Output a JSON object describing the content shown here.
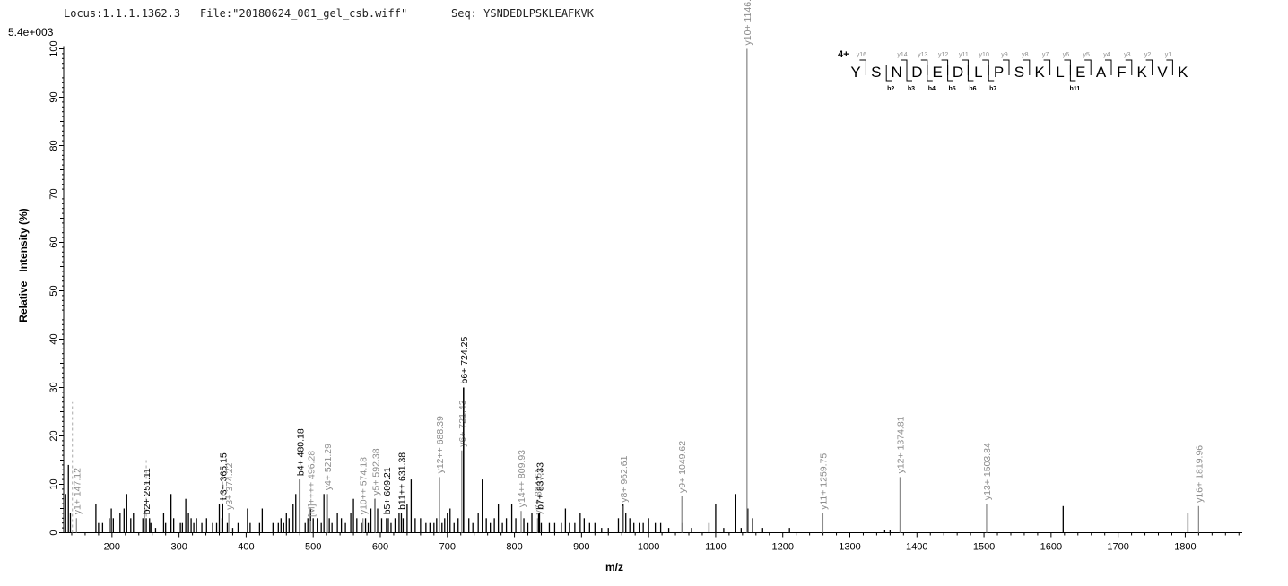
{
  "header": {
    "locus": "Locus:1.1.1.1362.3",
    "file": "File:\"20180624_001_gel_csb.wiff\"",
    "seq": "Seq: YSNDEDLPSKLEAFKVK"
  },
  "chart_data": {
    "type": "bar",
    "scale_label": "5.4e+003",
    "xlabel": "m/z",
    "ylabel": "Relative   Intensity (%)",
    "xlim": [
      128,
      1885
    ],
    "ylim": [
      0,
      100
    ],
    "x_ticks": [
      200,
      300,
      400,
      500,
      600,
      700,
      800,
      900,
      1000,
      1100,
      1200,
      1300,
      1400,
      1500,
      1600,
      1700,
      1800
    ],
    "y_ticks": [
      0,
      10,
      20,
      30,
      40,
      50,
      60,
      70,
      80,
      90,
      100
    ],
    "colors": {
      "annotated": "#000000",
      "fragment": "#8c8c8c",
      "noise": "#000000"
    },
    "noise_peaks": [
      [
        131,
        8
      ],
      [
        135,
        14
      ],
      [
        138,
        4
      ],
      [
        176,
        6
      ],
      [
        180,
        2
      ],
      [
        186,
        2
      ],
      [
        196,
        3
      ],
      [
        199,
        5
      ],
      [
        202,
        3
      ],
      [
        212,
        4
      ],
      [
        218,
        5
      ],
      [
        222,
        8
      ],
      [
        228,
        3
      ],
      [
        232,
        4
      ],
      [
        246,
        3
      ],
      [
        248,
        6
      ],
      [
        256,
        3
      ],
      [
        258,
        2
      ],
      [
        265,
        1
      ],
      [
        277,
        4
      ],
      [
        280,
        2
      ],
      [
        288,
        8
      ],
      [
        292,
        3
      ],
      [
        302,
        2
      ],
      [
        305,
        2
      ],
      [
        310,
        7
      ],
      [
        314,
        4
      ],
      [
        318,
        3
      ],
      [
        322,
        2
      ],
      [
        326,
        3
      ],
      [
        334,
        2
      ],
      [
        341,
        3
      ],
      [
        350,
        2
      ],
      [
        356,
        2
      ],
      [
        360,
        6
      ],
      [
        364,
        3
      ],
      [
        372,
        2
      ],
      [
        380,
        1
      ],
      [
        388,
        2
      ],
      [
        402,
        5
      ],
      [
        406,
        2
      ],
      [
        420,
        2
      ],
      [
        424,
        5
      ],
      [
        440,
        2
      ],
      [
        448,
        2
      ],
      [
        452,
        3
      ],
      [
        456,
        2
      ],
      [
        460,
        4
      ],
      [
        464,
        3
      ],
      [
        470,
        6
      ],
      [
        474,
        8
      ],
      [
        480,
        11
      ],
      [
        488,
        2
      ],
      [
        492,
        3
      ],
      [
        496,
        5
      ],
      [
        500,
        3
      ],
      [
        506,
        3
      ],
      [
        512,
        2
      ],
      [
        516,
        8
      ],
      [
        524,
        3
      ],
      [
        528,
        2
      ],
      [
        536,
        4
      ],
      [
        542,
        3
      ],
      [
        548,
        2
      ],
      [
        556,
        4
      ],
      [
        560,
        7
      ],
      [
        565,
        3
      ],
      [
        572,
        2
      ],
      [
        578,
        3
      ],
      [
        582,
        2
      ],
      [
        586,
        5
      ],
      [
        592,
        7
      ],
      [
        596,
        5
      ],
      [
        602,
        3
      ],
      [
        612,
        3
      ],
      [
        616,
        2
      ],
      [
        622,
        3
      ],
      [
        628,
        4
      ],
      [
        634,
        3
      ],
      [
        640,
        6
      ],
      [
        646,
        11
      ],
      [
        652,
        3
      ],
      [
        660,
        3
      ],
      [
        668,
        2
      ],
      [
        674,
        2
      ],
      [
        680,
        2
      ],
      [
        684,
        3
      ],
      [
        692,
        2
      ],
      [
        696,
        3
      ],
      [
        700,
        4
      ],
      [
        704,
        5
      ],
      [
        710,
        2
      ],
      [
        716,
        3
      ],
      [
        724,
        30
      ],
      [
        732,
        3
      ],
      [
        738,
        2
      ],
      [
        746,
        4
      ],
      [
        752,
        11
      ],
      [
        758,
        3
      ],
      [
        764,
        2
      ],
      [
        770,
        3
      ],
      [
        776,
        6
      ],
      [
        782,
        2
      ],
      [
        788,
        3
      ],
      [
        796,
        6
      ],
      [
        802,
        3
      ],
      [
        814,
        3
      ],
      [
        820,
        2
      ],
      [
        826,
        4
      ],
      [
        836,
        4
      ],
      [
        840,
        2
      ],
      [
        852,
        2
      ],
      [
        860,
        2
      ],
      [
        870,
        2
      ],
      [
        876,
        5
      ],
      [
        882,
        2
      ],
      [
        890,
        2
      ],
      [
        898,
        4
      ],
      [
        904,
        3
      ],
      [
        912,
        2
      ],
      [
        920,
        2
      ],
      [
        930,
        1
      ],
      [
        940,
        1
      ],
      [
        955,
        3
      ],
      [
        962,
        6
      ],
      [
        966,
        4
      ],
      [
        972,
        3
      ],
      [
        978,
        2
      ],
      [
        986,
        2
      ],
      [
        992,
        2
      ],
      [
        1000,
        3
      ],
      [
        1010,
        2
      ],
      [
        1018,
        2
      ],
      [
        1030,
        1
      ],
      [
        1050,
        2
      ],
      [
        1064,
        1
      ],
      [
        1090,
        2
      ],
      [
        1100,
        6
      ],
      [
        1112,
        1
      ],
      [
        1130,
        8
      ],
      [
        1138,
        1
      ],
      [
        1148,
        5
      ],
      [
        1155,
        3
      ],
      [
        1170,
        1
      ],
      [
        1210,
        1
      ],
      [
        1352,
        0.5
      ],
      [
        1360,
        0.5
      ],
      [
        1618,
        5.5
      ],
      [
        1804,
        4
      ]
    ],
    "fragment_peaks": [
      {
        "x": 147.12,
        "y": 3,
        "label": "y1+ 147.12"
      },
      {
        "x": 374.22,
        "y": 4,
        "label": "y3+ 374.22"
      },
      {
        "x": 496.28,
        "y": 2.5,
        "label": "[M]++++ 496.28"
      },
      {
        "x": 521.29,
        "y": 8,
        "label": "y4+ 521.29"
      },
      {
        "x": 574.18,
        "y": 3,
        "label": "y10++ 574.18"
      },
      {
        "x": 592.38,
        "y": 7,
        "label": "y5+ 592.38"
      },
      {
        "x": 688.39,
        "y": 11.5,
        "label": "y12++ 688.39"
      },
      {
        "x": 721.43,
        "y": 17,
        "label": "y6+ 721.43"
      },
      {
        "x": 809.93,
        "y": 4.5,
        "label": "y14++ 809.93"
      },
      {
        "x": 834.51,
        "y": 3,
        "label": "y7+ 834.51"
      },
      {
        "x": 962.61,
        "y": 5.5,
        "label": "y8+ 962.61"
      },
      {
        "x": 1049.62,
        "y": 7.5,
        "label": "y9+ 1049.62"
      },
      {
        "x": 1146.69,
        "y": 100,
        "label": "y10+ 1146.69"
      },
      {
        "x": 1259.75,
        "y": 4,
        "label": "y11+ 1259.75"
      },
      {
        "x": 1374.81,
        "y": 11.5,
        "label": "y12+ 1374.81"
      },
      {
        "x": 1503.84,
        "y": 6,
        "label": "y13+ 1503.84"
      },
      {
        "x": 1819.96,
        "y": 5.5,
        "label": "y16+ 1819.96"
      }
    ],
    "b_peaks": [
      {
        "x": 251.11,
        "y": 3,
        "label": "b2+ 251.11"
      },
      {
        "x": 365.15,
        "y": 6,
        "label": "b3+ 365.15"
      },
      {
        "x": 480.18,
        "y": 11,
        "label": "b4+ 480.18"
      },
      {
        "x": 609.21,
        "y": 3,
        "label": "b5+ 609.21"
      },
      {
        "x": 631.38,
        "y": 4,
        "label": "b11++ 631.38"
      },
      {
        "x": 724.25,
        "y": 30,
        "label": "b6+ 724.25"
      },
      {
        "x": 837.33,
        "y": 4,
        "label": "b7+ 837.33"
      }
    ],
    "dashed_peaks": [
      {
        "x": 141,
        "y": 27
      },
      {
        "x": 251.11,
        "y": 15.5
      },
      {
        "x": 365.15,
        "y": 12
      }
    ],
    "sequence": {
      "charge": "4+",
      "residues": [
        "Y",
        "S",
        "N",
        "D",
        "E",
        "D",
        "L",
        "P",
        "S",
        "K",
        "L",
        "E",
        "A",
        "F",
        "K",
        "V",
        "K"
      ],
      "y_ions": [
        {
          "after": 1,
          "label": "y16"
        },
        {
          "after": 3,
          "label": "y14"
        },
        {
          "after": 4,
          "label": "y13"
        },
        {
          "after": 5,
          "label": "y12"
        },
        {
          "after": 6,
          "label": "y11"
        },
        {
          "after": 7,
          "label": "y10"
        },
        {
          "after": 8,
          "label": "y9"
        },
        {
          "after": 9,
          "label": "y8"
        },
        {
          "after": 10,
          "label": "y7"
        },
        {
          "after": 11,
          "label": "y6"
        },
        {
          "after": 12,
          "label": "y5"
        },
        {
          "after": 13,
          "label": "y4"
        },
        {
          "after": 14,
          "label": "y3"
        },
        {
          "after": 15,
          "label": "y2"
        },
        {
          "after": 16,
          "label": "y1"
        }
      ],
      "b_ions": [
        {
          "after": 2,
          "label": "b2"
        },
        {
          "after": 3,
          "label": "b3"
        },
        {
          "after": 4,
          "label": "b4"
        },
        {
          "after": 5,
          "label": "b5"
        },
        {
          "after": 6,
          "label": "b6"
        },
        {
          "after": 7,
          "label": "b7"
        },
        {
          "after": 11,
          "label": "b11"
        }
      ]
    }
  }
}
